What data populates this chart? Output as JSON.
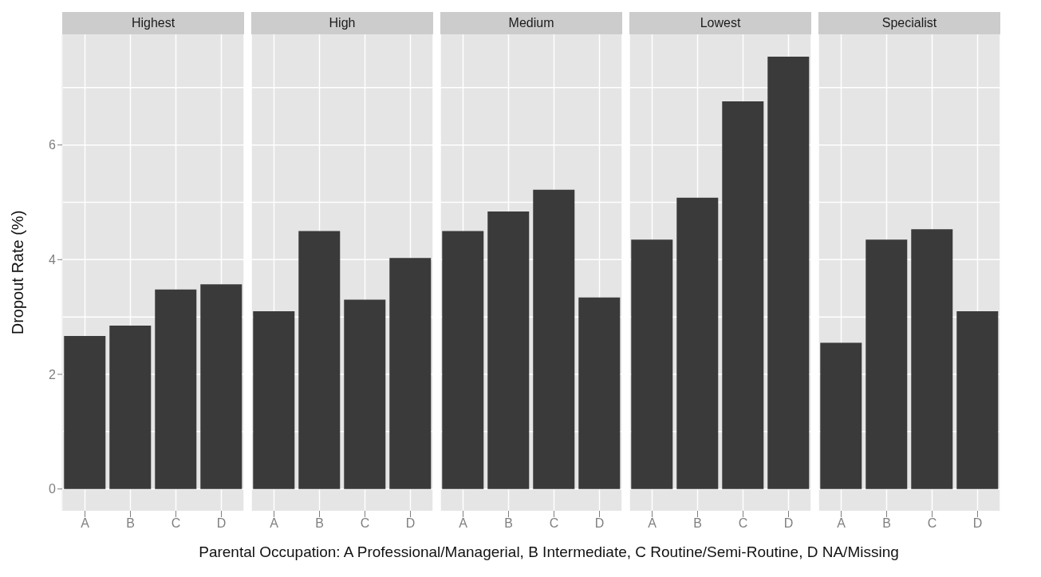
{
  "chart_data": [
    {
      "type": "bar",
      "title": "Highest",
      "ylabel": "Dropout Rate (%)",
      "xlabel": "Parental Occupation: A Professional/Managerial, B Intermediate, C Routine/Semi-Routine, D NA/Missing",
      "categories": [
        "A",
        "B",
        "C",
        "D"
      ],
      "values": [
        2.67,
        2.85,
        3.48,
        3.57
      ],
      "color": "#3a3a3a",
      "ylim": [
        -0.38,
        7.93
      ],
      "yticks": [
        0,
        2,
        4,
        6
      ],
      "grid": true
    },
    {
      "type": "bar",
      "title": "High",
      "categories": [
        "A",
        "B",
        "C",
        "D"
      ],
      "values": [
        3.1,
        4.5,
        3.3,
        4.03
      ],
      "color": "#3a3a3a",
      "ylim": [
        -0.38,
        7.93
      ],
      "yticks": [
        0,
        2,
        4,
        6
      ],
      "grid": true,
      "tick_labels": "x"
    },
    {
      "type": "bar",
      "title": "Medium",
      "categories": [
        "A",
        "B",
        "C",
        "D"
      ],
      "values": [
        4.5,
        4.84,
        5.22,
        3.34
      ],
      "color": "#3a3a3a",
      "ylim": [
        -0.38,
        7.93
      ],
      "yticks": [
        0,
        2,
        4,
        6
      ],
      "grid": true,
      "tick_labels": "x"
    },
    {
      "type": "bar",
      "title": "Lowest",
      "categories": [
        "A",
        "B",
        "C",
        "D"
      ],
      "values": [
        4.35,
        5.08,
        6.76,
        7.54
      ],
      "color": "#3a3a3a",
      "ylim": [
        -0.38,
        7.93
      ],
      "yticks": [
        0,
        2,
        4,
        6
      ],
      "grid": true,
      "tick_labels": "x"
    },
    {
      "type": "bar",
      "title": "Specialist",
      "categories": [
        "A",
        "B",
        "C",
        "D"
      ],
      "values": [
        2.55,
        4.35,
        4.53,
        3.1
      ],
      "color": "#3a3a3a",
      "ylim": [
        -0.38,
        7.93
      ],
      "yticks": [
        0,
        2,
        4,
        6
      ],
      "grid": true,
      "tick_labels": "x"
    }
  ]
}
